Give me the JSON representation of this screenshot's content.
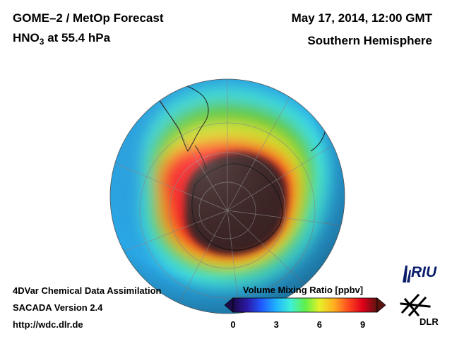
{
  "header": {
    "title_line1": "GOME–2 / MetOp Forecast",
    "species_main": "HNO",
    "species_sub": "3",
    "species_rest": " at 55.4 hPa",
    "datetime": "May 17, 2014, 12:00 GMT",
    "hemisphere": "Southern Hemisphere"
  },
  "footer": {
    "line1": "4DVar Chemical Data Assimilation",
    "line2": "SACADA Version 2.4",
    "line3": "http://wdc.dlr.de"
  },
  "colorbar": {
    "title": "Volume Mixing Ratio [ppbv]",
    "min": 0,
    "max": 10,
    "ticks": [
      "0",
      "3",
      "6",
      "9"
    ],
    "stops": [
      "#1c0a4a",
      "#2b1aa8",
      "#1f5cff",
      "#1fb4ff",
      "#3ff0d8",
      "#5ff04a",
      "#e6f028",
      "#ffb020",
      "#ff4a20",
      "#e0001a",
      "#5a1410"
    ]
  },
  "logos": {
    "riu": "RIU",
    "dlr": "DLR"
  },
  "map": {
    "projection": "orthographic",
    "center": "South Pole",
    "field_levels_ppbv": {
      "outer": 3,
      "mid": 5,
      "inner_ring": 8,
      "vortex_core": 10
    },
    "colors": {
      "ocean_blue": "#2aa7e6",
      "cyan": "#3fe0e0",
      "green": "#5fd13f",
      "yellow": "#d8e82a",
      "orange": "#ff9a20",
      "red": "#ff2020",
      "vortex": "#3a2222"
    }
  }
}
